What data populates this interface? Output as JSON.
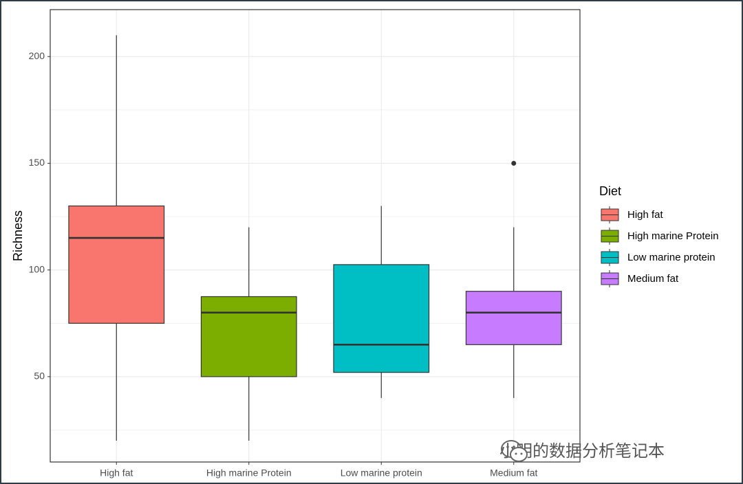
{
  "chart_data": {
    "type": "boxplot",
    "title": "",
    "xlabel": "",
    "ylabel": "Richness",
    "ylim": [
      10,
      222
    ],
    "yticks": [
      50,
      100,
      150,
      200
    ],
    "grid": true,
    "legend": {
      "title": "Diet",
      "placement": "right"
    },
    "categories": [
      "High fat",
      "High marine Protein",
      "Low marine protein",
      "Medium fat"
    ],
    "colors": {
      "box_fill": [
        "#F8766D",
        "#7CAE00",
        "#00BFC4",
        "#C77CFF"
      ],
      "panel_border": "#333333",
      "grid": "#EBEBEB"
    },
    "series": [
      {
        "category": "High fat",
        "min": 20,
        "q1": 75,
        "median": 115,
        "q3": 130,
        "max": 210,
        "outliers": []
      },
      {
        "category": "High marine Protein",
        "min": 20,
        "q1": 50,
        "median": 80,
        "q3": 87.5,
        "max": 120,
        "outliers": []
      },
      {
        "category": "Low marine protein",
        "min": 40,
        "q1": 52,
        "median": 65,
        "q3": 102.5,
        "max": 130,
        "outliers": []
      },
      {
        "category": "Medium fat",
        "min": 40,
        "q1": 65,
        "median": 80,
        "q3": 90,
        "max": 120,
        "outliers": [
          150
        ]
      }
    ]
  },
  "watermark": {
    "text": "小明的数据分析笔记本",
    "icon": "wechat-icon"
  }
}
